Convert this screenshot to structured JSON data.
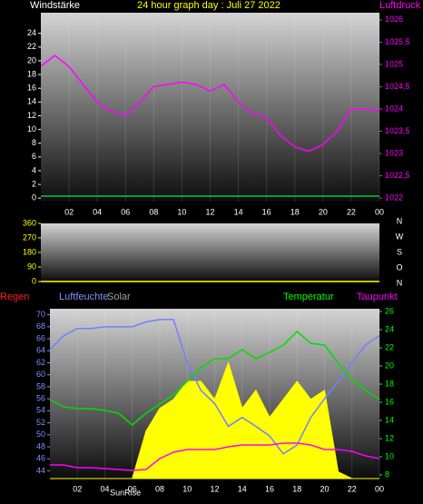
{
  "chart_data": [
    {
      "type": "line",
      "title": "24 hour graph day : Juli 27 2022",
      "y_label": "Windstärke",
      "y2_label": "Luftdruck",
      "x": [
        0,
        1,
        2,
        3,
        4,
        5,
        6,
        7,
        8,
        9,
        10,
        11,
        12,
        13,
        14,
        15,
        16,
        17,
        18,
        19,
        20,
        21,
        22,
        23,
        24
      ],
      "xlim": [
        0,
        24
      ],
      "xticks": [
        {
          "value": 2,
          "label": "02"
        },
        {
          "value": 4,
          "label": "04"
        },
        {
          "value": 6,
          "label": "06"
        },
        {
          "value": 8,
          "label": "08"
        },
        10,
        12,
        14,
        16,
        18,
        20,
        22,
        {
          "value": 24,
          "label": "00"
        }
      ],
      "ylim": [
        -0.5,
        27
      ],
      "yticks": [
        0,
        2,
        4,
        6,
        8,
        10,
        12,
        14,
        16,
        18,
        20,
        22,
        24
      ],
      "y2lim": [
        1021.92,
        1026.16
      ],
      "y2ticks": [
        1022,
        {
          "value": 1022.5,
          "label": "1022,5"
        },
        1023,
        {
          "value": 1023.5,
          "label": "1023,5"
        },
        1024,
        {
          "value": 1024.5,
          "label": "1024,5"
        },
        1025,
        {
          "value": 1025.5,
          "label": "1025,5"
        },
        1026
      ],
      "series": [
        {
          "color": "#00cc44",
          "values": [
            0.3,
            0.3,
            0.3,
            0.3,
            0.3,
            0.3,
            0.3,
            0.3,
            0.3,
            0.3,
            0.3,
            0.3,
            0.3,
            0.3,
            0.3,
            0.3,
            0.3,
            0.3,
            0.3,
            0.3,
            0.3,
            0.3,
            0.3,
            0.3,
            0.3
          ]
        },
        {
          "color": "#ff00ff",
          "axis": "y2",
          "values": [
            1024.96,
            1025.2,
            1024.95,
            1024.55,
            1024.15,
            1023.95,
            1023.85,
            1024.15,
            1024.5,
            1024.55,
            1024.6,
            1024.55,
            1024.4,
            1024.55,
            1024.15,
            1023.9,
            1023.8,
            1023.4,
            1023.15,
            1023.05,
            1023.2,
            1023.5,
            1024,
            1024,
            1023.95
          ]
        }
      ]
    },
    {
      "type": "line",
      "x": [
        0,
        1,
        2,
        3,
        4,
        5,
        6,
        7,
        8,
        9,
        10,
        11,
        12,
        13,
        14,
        15,
        16,
        17,
        18,
        19,
        20,
        21,
        22,
        23,
        24
      ],
      "xlim": [
        0,
        24
      ],
      "ylim": [
        0,
        360
      ],
      "yticks": [
        0,
        90,
        180,
        270,
        360
      ],
      "direction_labels": [
        "N",
        "W",
        "S",
        "O",
        "N"
      ],
      "series": [
        {
          "color": "#ffff00",
          "values": [
            0,
            0,
            0,
            0,
            0,
            0,
            0,
            0,
            0,
            0,
            0,
            0,
            0,
            0,
            0,
            0,
            0,
            0,
            0,
            0,
            0,
            0,
            0,
            0,
            0
          ]
        }
      ]
    },
    {
      "type": "line",
      "rain_label": "Regen",
      "x": [
        0,
        1,
        2,
        3,
        4,
        5,
        6,
        7,
        8,
        9,
        10,
        11,
        12,
        13,
        14,
        15,
        16,
        17,
        18,
        19,
        20,
        21,
        22,
        23,
        24
      ],
      "xlim": [
        0,
        24
      ],
      "xticks": [
        {
          "value": 2,
          "label": "02"
        },
        {
          "value": 4,
          "label": "04"
        },
        {
          "value": 6,
          "label": "06"
        },
        {
          "value": 8,
          "label": "08"
        },
        10,
        12,
        14,
        16,
        18,
        20,
        22,
        {
          "value": 24,
          "label": "00"
        }
      ],
      "ylim": [
        42.7,
        71
      ],
      "yticks": [
        44,
        46,
        48,
        50,
        52,
        54,
        56,
        58,
        60,
        62,
        64,
        66,
        68,
        70
      ],
      "y2lim": [
        7.6,
        26.3
      ],
      "y2ticks": [
        8,
        10,
        12,
        14,
        16,
        18,
        20,
        22,
        24,
        26
      ],
      "annotations": [
        {
          "text": "SunRise",
          "x": 5.5
        }
      ],
      "series": [
        {
          "name": "Solar",
          "color": "#ffff00",
          "area": true,
          "values": [
            42.7,
            42.7,
            42.7,
            42.7,
            42.7,
            42.7,
            42.7,
            50.6,
            54.4,
            55.9,
            58.9,
            58.9,
            55.9,
            62,
            54.4,
            57.4,
            52.9,
            55.9,
            58.9,
            55.9,
            57.4,
            43.8,
            42.7,
            42.7,
            42.7
          ]
        },
        {
          "name": "Luftfeuchte",
          "color": "#7080ff",
          "values": [
            64.2,
            66.5,
            67.7,
            67.7,
            68,
            68,
            68,
            68.8,
            69.2,
            69.2,
            62,
            57.4,
            55.2,
            51.4,
            52.9,
            51.4,
            49.8,
            46.8,
            48.3,
            52.9,
            56,
            58.9,
            62,
            65,
            66.5
          ]
        },
        {
          "name": "Temperatur",
          "color": "#00dd00",
          "axis": "y2",
          "values": [
            16.3,
            15.5,
            15.3,
            15.3,
            15.1,
            14.8,
            13.5,
            14.8,
            15.8,
            16.8,
            18.3,
            19.8,
            20.8,
            20.8,
            21.8,
            20.8,
            21.5,
            22.3,
            23.8,
            22.5,
            22.3,
            20.3,
            18.5,
            17.3,
            16.3
          ]
        },
        {
          "name": "Taupunkt",
          "color": "#ff00ff",
          "axis": "y2",
          "values": [
            9.1,
            9.1,
            8.8,
            8.8,
            8.7,
            8.6,
            8.5,
            8.6,
            9.8,
            10.5,
            10.8,
            10.8,
            10.8,
            11.1,
            11.3,
            11.3,
            11.3,
            11.5,
            11.5,
            11.3,
            10.8,
            10.8,
            10.6,
            10.1,
            9.8
          ]
        }
      ]
    }
  ]
}
